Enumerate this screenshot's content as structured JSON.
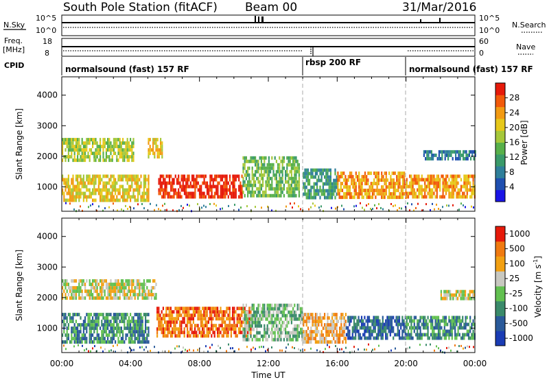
{
  "header": {
    "title": "South Pole Station (fitACF)",
    "beam": "Beam 00",
    "date": "31/Mar/2016"
  },
  "status_panels": {
    "nsky_label": "N.Sky",
    "nsearch_label": "N.Search",
    "noise_ticks": [
      "10^5",
      "10^0"
    ],
    "freq_label_top": "Freq.",
    "freq_label_unit": "[MHz]",
    "freq_ticks": [
      "18",
      "8"
    ],
    "nave_label": "Nave",
    "nave_ticks": [
      "60",
      "0"
    ],
    "cpid_label": "CPID",
    "cpid_segments": [
      {
        "label": "normalsound (fast) 157 RF",
        "start_hour": 0,
        "end_hour": 14
      },
      {
        "label": "rbsp 200 RF",
        "start_hour": 14,
        "end_hour": 20
      },
      {
        "label": "normalsound (fast) 157 RF",
        "start_hour": 20,
        "end_hour": 24
      }
    ]
  },
  "chart_data": [
    {
      "type": "heatmap",
      "name": "power",
      "ylabel": "Slant Range [km]",
      "yticks": [
        "1000",
        "2000",
        "3000",
        "4000"
      ],
      "ylim": [
        200,
        4600
      ],
      "xlim": [
        0,
        24
      ],
      "colorbar_label": "Power [dB]",
      "colorbar_ticks": [
        "4",
        "8",
        "12",
        "16",
        "20",
        "24",
        "28"
      ],
      "colorbar_colors": [
        "#1a14e6",
        "#1f4fb0",
        "#2f7f9a",
        "#3a9a6a",
        "#58b04a",
        "#a6c83a",
        "#e6c81a",
        "#f29a12",
        "#f25a0a",
        "#e61a0a"
      ],
      "bands": [
        {
          "x0": 0.0,
          "x1": 4.2,
          "r0": 1900,
          "r1": 2600,
          "level": 5
        },
        {
          "x0": 0.0,
          "x1": 5.0,
          "r0": 600,
          "r1": 1400,
          "level": 6
        },
        {
          "x0": 5.0,
          "x1": 5.8,
          "r0": 2000,
          "r1": 2600,
          "level": 6
        },
        {
          "x0": 5.6,
          "x1": 10.5,
          "r0": 700,
          "r1": 1400,
          "level": 9
        },
        {
          "x0": 10.5,
          "x1": 13.8,
          "r0": 700,
          "r1": 2000,
          "level": 4
        },
        {
          "x0": 14.0,
          "x1": 16.0,
          "r0": 600,
          "r1": 1600,
          "level": 3
        },
        {
          "x0": 16.0,
          "x1": 20.0,
          "r0": 700,
          "r1": 1500,
          "level": 7
        },
        {
          "x0": 20.0,
          "x1": 24.0,
          "r0": 700,
          "r1": 1400,
          "level": 7
        },
        {
          "x0": 21.0,
          "x1": 24.0,
          "r0": 1900,
          "r1": 2200,
          "level": 2
        }
      ]
    },
    {
      "type": "heatmap",
      "name": "velocity",
      "ylabel": "Slant Range [km]",
      "yticks": [
        "1000",
        "2000",
        "3000",
        "4000"
      ],
      "ylim": [
        200,
        4600
      ],
      "xlim": [
        0,
        24
      ],
      "xticks": [
        "00:00",
        "04:00",
        "08:00",
        "12:00",
        "16:00",
        "20:00",
        "00:00"
      ],
      "xlabel": "Time UT",
      "colorbar_label": "Velocity [m s",
      "colorbar_superscript": "-1",
      "colorbar_ticks": [
        "1000",
        "500",
        "100",
        "25",
        "-25",
        "-100",
        "-500",
        "-1000"
      ],
      "colorbar_colors": [
        "#1a3cb4",
        "#2a5a9a",
        "#3a8a6a",
        "#62c050",
        "#c8c8c0",
        "#f2a012",
        "#f07a10",
        "#e61a0a"
      ],
      "bands": [
        {
          "x0": 0.0,
          "x1": 5.5,
          "r0": 1950,
          "r1": 2600,
          "level": 4
        },
        {
          "x0": 0.0,
          "x1": 5.0,
          "r0": 600,
          "r1": 1500,
          "level": 2
        },
        {
          "x0": 5.5,
          "x1": 11.0,
          "r0": 700,
          "r1": 1700,
          "level": 6
        },
        {
          "x0": 10.5,
          "x1": 14.0,
          "r0": 600,
          "r1": 1800,
          "level": 3
        },
        {
          "x0": 14.0,
          "x1": 16.5,
          "r0": 600,
          "r1": 1500,
          "level": 5
        },
        {
          "x0": 16.5,
          "x1": 20.0,
          "r0": 700,
          "r1": 1400,
          "level": 1
        },
        {
          "x0": 20.0,
          "x1": 24.0,
          "r0": 700,
          "r1": 1400,
          "level": 2
        },
        {
          "x0": 22.0,
          "x1": 24.0,
          "r0": 1950,
          "r1": 2250,
          "level": 4
        }
      ]
    }
  ]
}
